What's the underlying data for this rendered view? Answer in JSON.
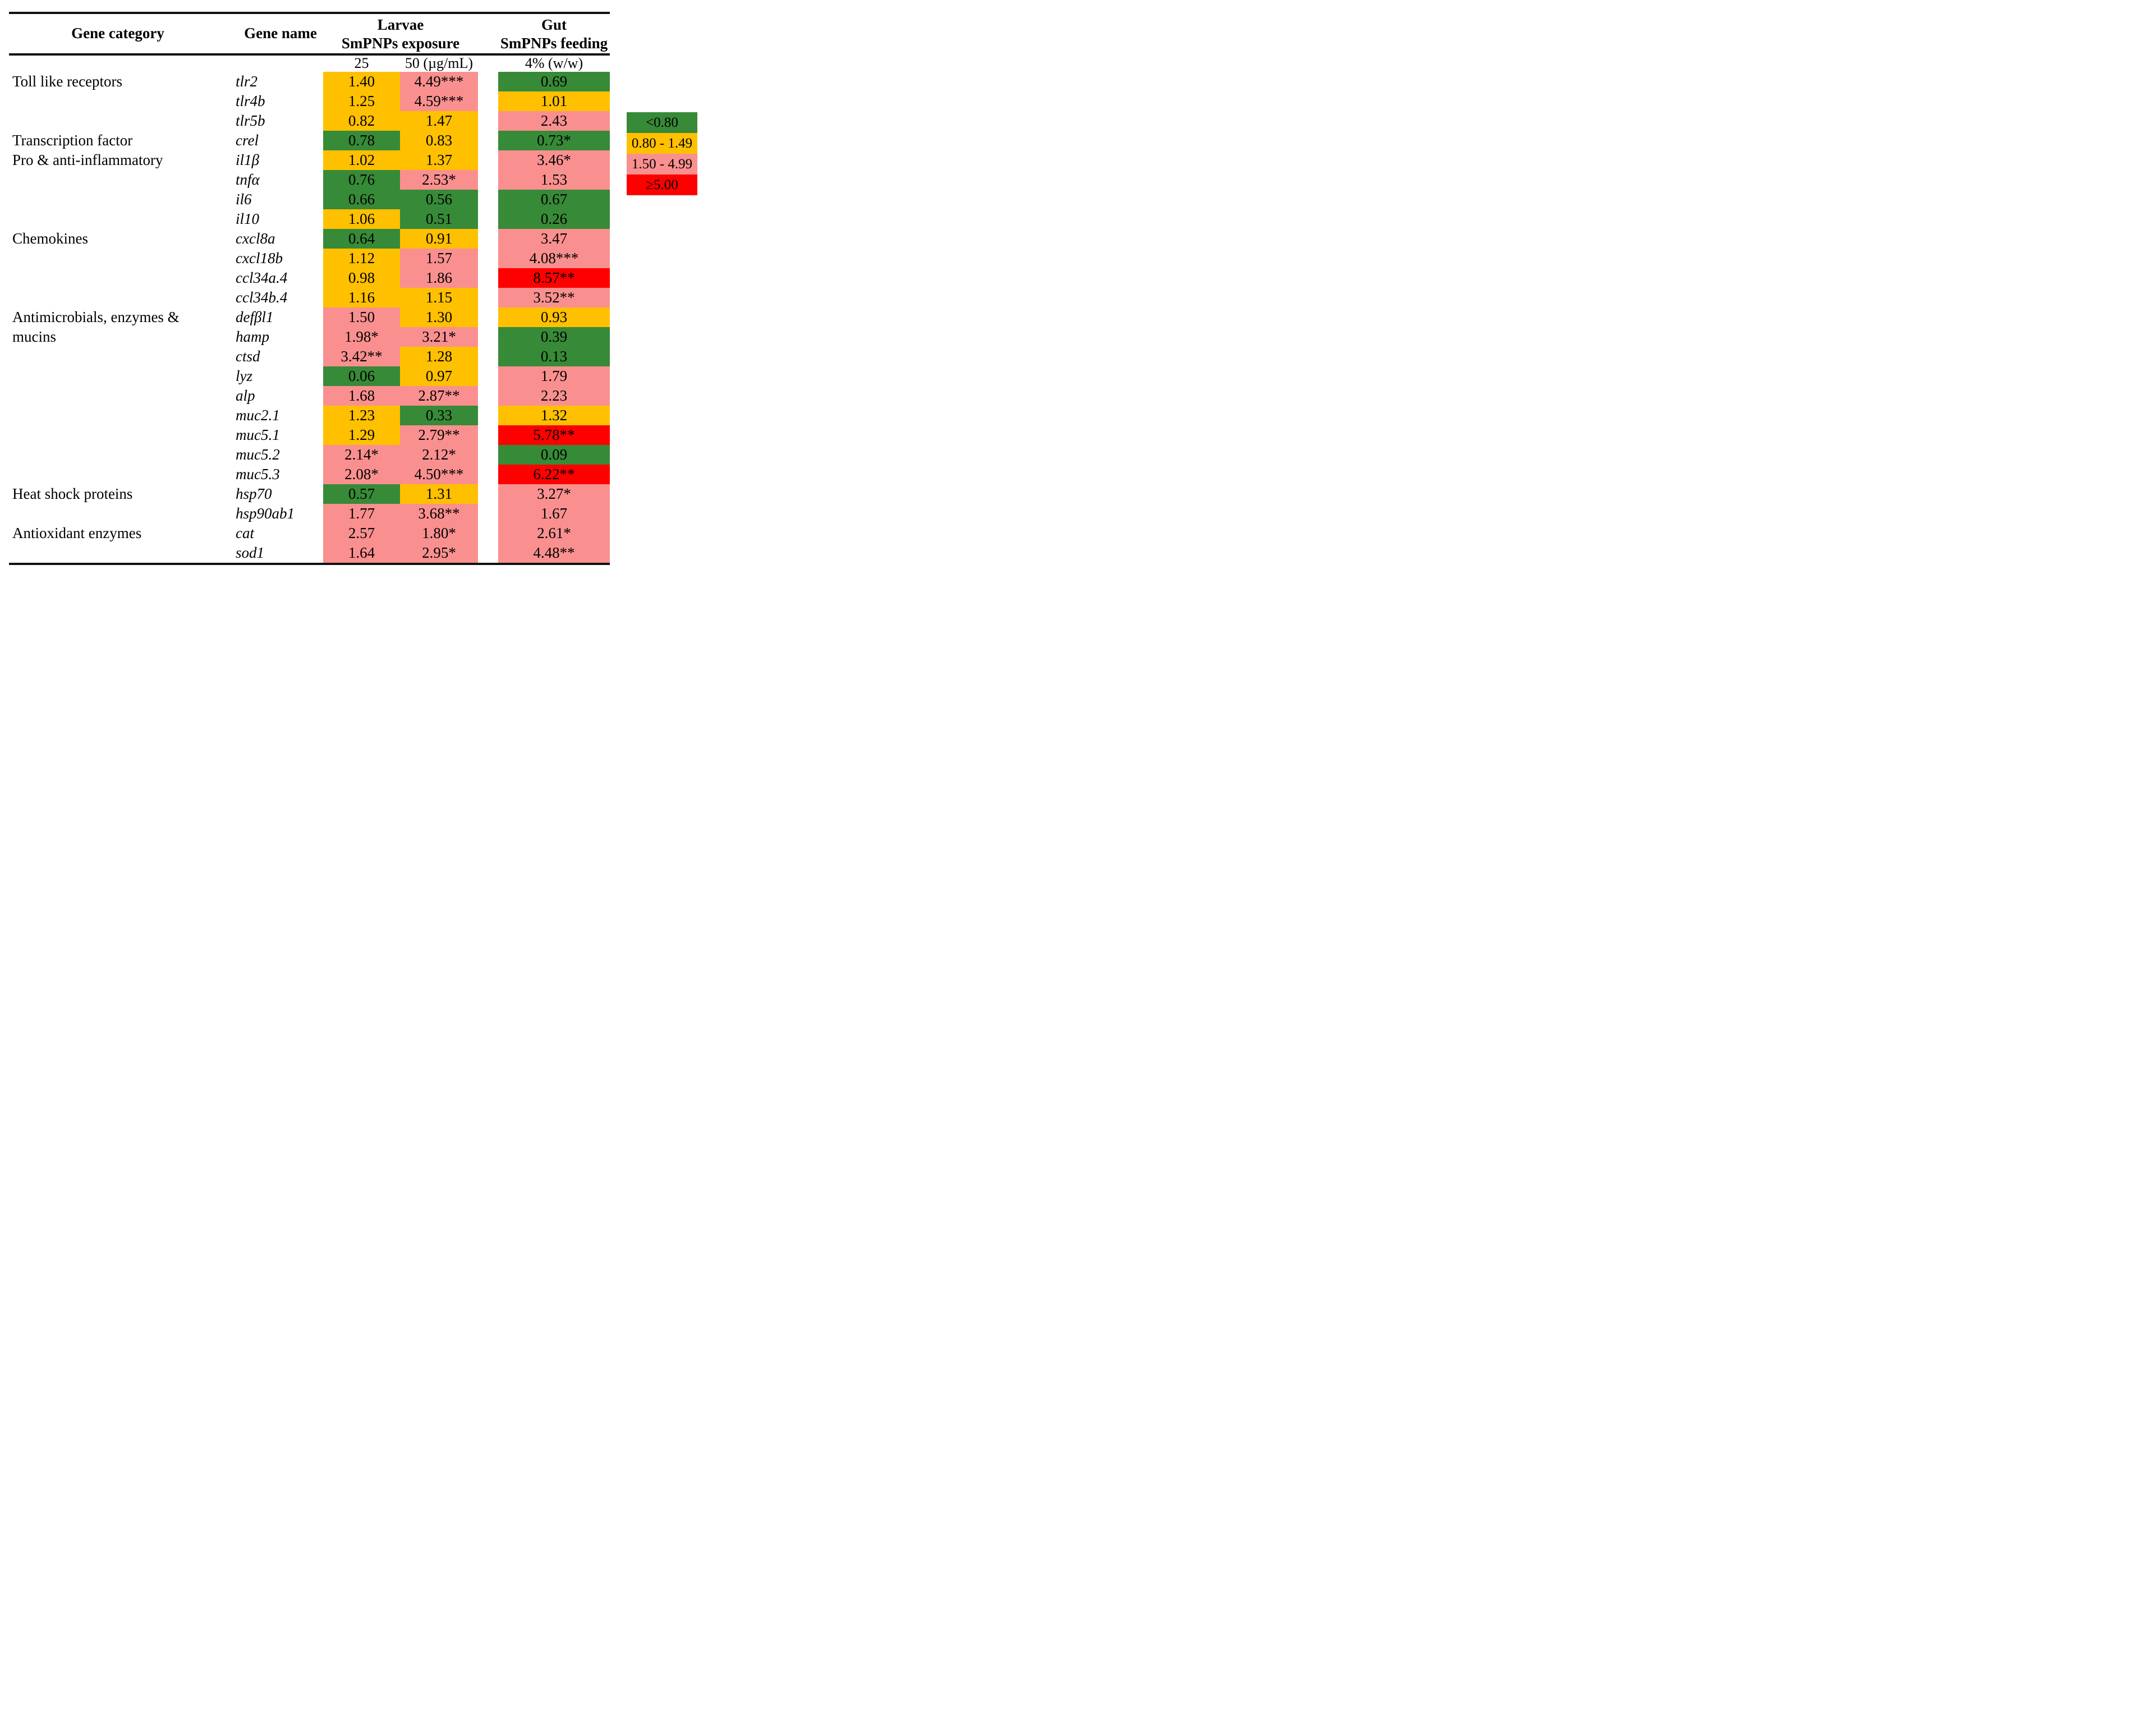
{
  "header": {
    "col_category": "Gene category",
    "col_gene": "Gene name",
    "group_larvae_line1": "Larvae",
    "group_larvae_line2": "SmPNPs exposure",
    "group_gut_line1": "Gut",
    "group_gut_line2": "SmPNPs feeding",
    "sub_col_25": "25",
    "sub_col_50": "50 (µg/mL)",
    "sub_col_gut": "4% (w/w)"
  },
  "colors": {
    "green": "#378A37",
    "yellow": "#FFC000",
    "pink": "#F9908F",
    "red": "#FF0000"
  },
  "legend": [
    {
      "label": "<0.80",
      "color_key": "green",
      "color": "#378A37"
    },
    {
      "label": "0.80 - 1.49",
      "color_key": "yellow",
      "color": "#FFC000"
    },
    {
      "label": "1.50 - 4.99",
      "color_key": "pink",
      "color": "#F9908F"
    },
    {
      "label": "≥5.00",
      "color_key": "red",
      "color": "#FF0000"
    }
  ],
  "chart_data": {
    "type": "heatmap",
    "title": "Gene expression fold changes in larvae (SmPNPs exposure) and gut (SmPNPs feeding)",
    "columns": [
      "Larvae SmPNPs exposure 25 µg/mL",
      "Larvae SmPNPs exposure 50 µg/mL",
      "Gut SmPNPs feeding 4% (w/w)"
    ],
    "color_scale": [
      {
        "range": "<0.80",
        "color": "#378A37"
      },
      {
        "range": "0.80 - 1.49",
        "color": "#FFC000"
      },
      {
        "range": "1.50 - 4.99",
        "color": "#F9908F"
      },
      {
        "range": "≥5.00",
        "color": "#FF0000"
      }
    ],
    "genes": [
      "tlr2",
      "tlr4b",
      "tlr5b",
      "crel",
      "il1β",
      "tnfα",
      "il6",
      "il10",
      "cxcl8a",
      "cxcl18b",
      "ccl34a.4",
      "ccl34b.4",
      "defβl1",
      "hamp",
      "ctsd",
      "lyz",
      "alp",
      "muc2.1",
      "muc5.1",
      "muc5.2",
      "muc5.3",
      "hsp70",
      "hsp90ab1",
      "cat",
      "sod1"
    ],
    "values_25": [
      1.4,
      1.25,
      0.82,
      0.78,
      1.02,
      0.76,
      0.66,
      1.06,
      0.64,
      1.12,
      0.98,
      1.16,
      1.5,
      1.98,
      3.42,
      0.06,
      1.68,
      1.23,
      1.29,
      2.14,
      2.08,
      0.57,
      1.77,
      2.57,
      1.64
    ],
    "values_50": [
      4.49,
      4.59,
      1.47,
      0.83,
      1.37,
      2.53,
      0.56,
      0.51,
      0.91,
      1.57,
      1.86,
      1.15,
      1.3,
      3.21,
      1.28,
      0.97,
      2.87,
      0.33,
      2.79,
      2.12,
      4.5,
      1.31,
      3.68,
      1.8,
      2.95
    ],
    "values_gut": [
      0.69,
      1.01,
      2.43,
      0.73,
      3.46,
      1.53,
      0.67,
      0.26,
      3.47,
      4.08,
      8.57,
      3.52,
      0.93,
      0.39,
      0.13,
      1.79,
      2.23,
      1.32,
      5.78,
      0.09,
      6.22,
      3.27,
      1.67,
      2.61,
      4.48
    ]
  },
  "rows": [
    {
      "category": "Toll like receptors",
      "gene": "tlr2",
      "v25": "1.40",
      "c25": "yellow",
      "v50": "4.49***",
      "c50": "pink",
      "vgut": "0.69",
      "cgut": "green"
    },
    {
      "category": "",
      "gene": "tlr4b",
      "v25": "1.25",
      "c25": "yellow",
      "v50": "4.59***",
      "c50": "pink",
      "vgut": "1.01",
      "cgut": "yellow"
    },
    {
      "category": "",
      "gene": "tlr5b",
      "v25": "0.82",
      "c25": "yellow",
      "v50": "1.47",
      "c50": "yellow",
      "vgut": "2.43",
      "cgut": "pink"
    },
    {
      "category": "Transcription factor",
      "gene": "crel",
      "v25": "0.78",
      "c25": "green",
      "v50": "0.83",
      "c50": "yellow",
      "vgut": "0.73*",
      "cgut": "green"
    },
    {
      "category": "Pro & anti-inflammatory",
      "gene": "il1β",
      "v25": "1.02",
      "c25": "yellow",
      "v50": "1.37",
      "c50": "yellow",
      "vgut": "3.46*",
      "cgut": "pink"
    },
    {
      "category": "",
      "gene": "tnfα",
      "v25": "0.76",
      "c25": "green",
      "v50": "2.53*",
      "c50": "pink",
      "vgut": "1.53",
      "cgut": "pink"
    },
    {
      "category": "",
      "gene": "il6",
      "v25": "0.66",
      "c25": "green",
      "v50": "0.56",
      "c50": "green",
      "vgut": "0.67",
      "cgut": "green"
    },
    {
      "category": "",
      "gene": "il10",
      "v25": "1.06",
      "c25": "yellow",
      "v50": "0.51",
      "c50": "green",
      "vgut": "0.26",
      "cgut": "green"
    },
    {
      "category": "Chemokines",
      "gene": "cxcl8a",
      "v25": "0.64",
      "c25": "green",
      "v50": "0.91",
      "c50": "yellow",
      "vgut": "3.47",
      "cgut": "pink"
    },
    {
      "category": "",
      "gene": "cxcl18b",
      "v25": "1.12",
      "c25": "yellow",
      "v50": "1.57",
      "c50": "pink",
      "vgut": "4.08***",
      "cgut": "pink"
    },
    {
      "category": "",
      "gene": "ccl34a.4",
      "v25": "0.98",
      "c25": "yellow",
      "v50": "1.86",
      "c50": "pink",
      "vgut": "8.57**",
      "cgut": "red"
    },
    {
      "category": "",
      "gene": "ccl34b.4",
      "v25": "1.16",
      "c25": "yellow",
      "v50": "1.15",
      "c50": "yellow",
      "vgut": "3.52**",
      "cgut": "pink"
    },
    {
      "category": "Antimicrobials, enzymes &",
      "gene": "defβl1",
      "v25": "1.50",
      "c25": "pink",
      "v50": "1.30",
      "c50": "yellow",
      "vgut": "0.93",
      "cgut": "yellow"
    },
    {
      "category": "mucins",
      "gene": "hamp",
      "v25": "1.98*",
      "c25": "pink",
      "v50": "3.21*",
      "c50": "pink",
      "vgut": "0.39",
      "cgut": "green"
    },
    {
      "category": "",
      "gene": "ctsd",
      "v25": "3.42**",
      "c25": "pink",
      "v50": "1.28",
      "c50": "yellow",
      "vgut": "0.13",
      "cgut": "green"
    },
    {
      "category": "",
      "gene": "lyz",
      "v25": "0.06",
      "c25": "green",
      "v50": "0.97",
      "c50": "yellow",
      "vgut": "1.79",
      "cgut": "pink"
    },
    {
      "category": "",
      "gene": "alp",
      "v25": "1.68",
      "c25": "pink",
      "v50": "2.87**",
      "c50": "pink",
      "vgut": "2.23",
      "cgut": "pink"
    },
    {
      "category": "",
      "gene": "muc2.1",
      "v25": "1.23",
      "c25": "yellow",
      "v50": "0.33",
      "c50": "green",
      "vgut": "1.32",
      "cgut": "yellow"
    },
    {
      "category": "",
      "gene": "muc5.1",
      "v25": "1.29",
      "c25": "yellow",
      "v50": "2.79**",
      "c50": "pink",
      "vgut": "5.78**",
      "cgut": "red"
    },
    {
      "category": "",
      "gene": "muc5.2",
      "v25": "2.14*",
      "c25": "pink",
      "v50": "2.12*",
      "c50": "pink",
      "vgut": "0.09",
      "cgut": "green"
    },
    {
      "category": "",
      "gene": "muc5.3",
      "v25": "2.08*",
      "c25": "pink",
      "v50": "4.50***",
      "c50": "pink",
      "vgut": "6.22**",
      "cgut": "red"
    },
    {
      "category": "Heat shock proteins",
      "gene": "hsp70",
      "v25": "0.57",
      "c25": "green",
      "v50": "1.31",
      "c50": "yellow",
      "vgut": "3.27*",
      "cgut": "pink"
    },
    {
      "category": "",
      "gene": "hsp90ab1",
      "v25": "1.77",
      "c25": "pink",
      "v50": "3.68**",
      "c50": "pink",
      "vgut": "1.67",
      "cgut": "pink"
    },
    {
      "category": "Antioxidant enzymes",
      "gene": "cat",
      "v25": "2.57",
      "c25": "pink",
      "v50": "1.80*",
      "c50": "pink",
      "vgut": "2.61*",
      "cgut": "pink"
    },
    {
      "category": "",
      "gene": "sod1",
      "v25": "1.64",
      "c25": "pink",
      "v50": "2.95*",
      "c50": "pink",
      "vgut": "4.48**",
      "cgut": "pink"
    }
  ]
}
